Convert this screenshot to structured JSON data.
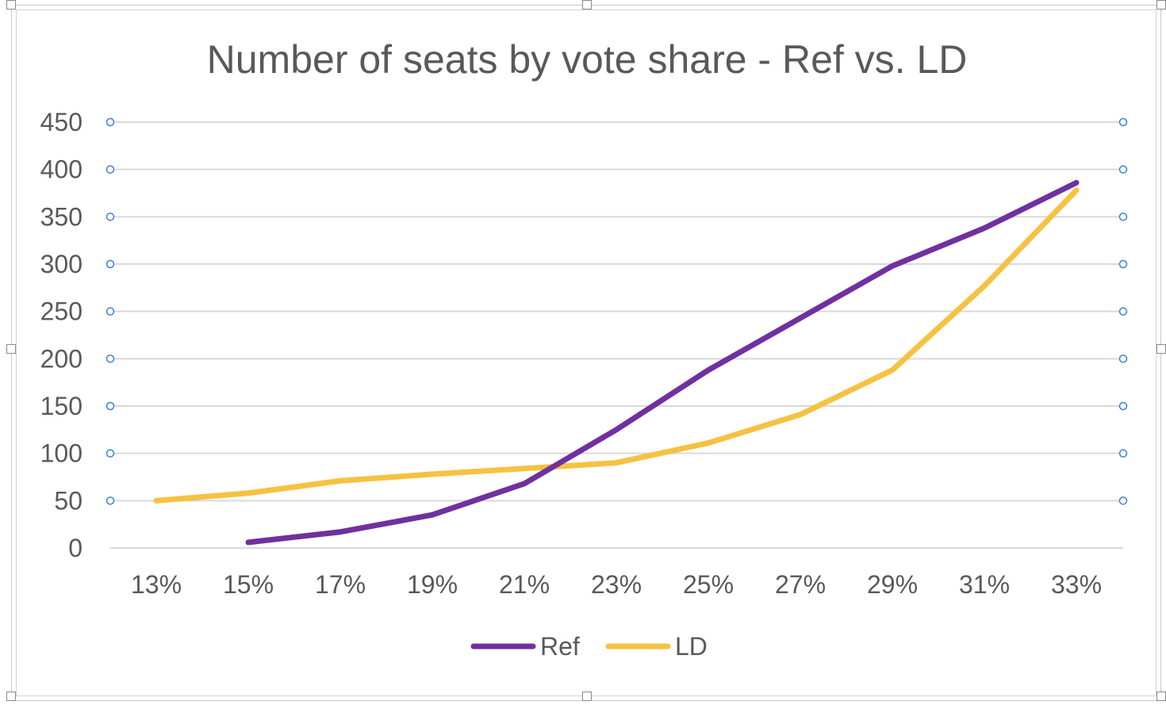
{
  "chart_data": {
    "type": "line",
    "title": "Number of seats by vote share - Ref vs. LD",
    "xlabel": "",
    "ylabel": "",
    "categories": [
      "13%",
      "15%",
      "17%",
      "19%",
      "21%",
      "23%",
      "25%",
      "27%",
      "29%",
      "31%",
      "33%"
    ],
    "ylim": [
      0,
      450
    ],
    "yticks": [
      0,
      50,
      100,
      150,
      200,
      250,
      300,
      350,
      400,
      450
    ],
    "grid": true,
    "legend": "bottom",
    "series": [
      {
        "name": "Ref",
        "color": "#7030A0",
        "values": [
          null,
          6,
          17,
          35,
          68,
          125,
          188,
          243,
          298,
          338,
          386
        ]
      },
      {
        "name": "LD",
        "color": "#F5C242",
        "values": [
          50,
          58,
          71,
          78,
          84,
          90,
          111,
          141,
          188,
          277,
          378
        ]
      }
    ]
  }
}
